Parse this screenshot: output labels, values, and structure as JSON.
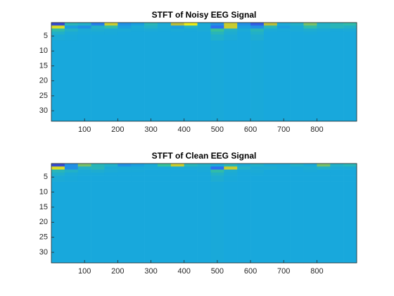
{
  "chart_data": [
    {
      "type": "heatmap",
      "title": "STFT of Noisy EEG Signal",
      "colormap": "parula",
      "clim": [
        0,
        1
      ],
      "xlim": [
        0,
        920
      ],
      "ylim": [
        0.5,
        33.5
      ],
      "xticks": [
        100,
        200,
        300,
        400,
        500,
        600,
        700,
        800
      ],
      "yticks": [
        5,
        10,
        15,
        20,
        25,
        30
      ],
      "x_edges": [
        0,
        40,
        80,
        120,
        160,
        200,
        240,
        280,
        320,
        360,
        400,
        440,
        480,
        520,
        560,
        600,
        640,
        680,
        720,
        760,
        800,
        840,
        880,
        920
      ],
      "y_edges": [
        0.5,
        1.5,
        2.5,
        3.5,
        4.5,
        6.5,
        33.5
      ],
      "values": [
        [
          0.1,
          0.5,
          0.45,
          0.25,
          0.85,
          0.3,
          0.35,
          0.5,
          0.4,
          0.8,
          0.95,
          0.4,
          0.3,
          0.85,
          0.3,
          0.15,
          0.8,
          0.4,
          0.45,
          0.7,
          0.45,
          0.5,
          0.55
        ],
        [
          0.9,
          0.35,
          0.3,
          0.45,
          0.55,
          0.35,
          0.4,
          0.45,
          0.4,
          0.35,
          0.45,
          0.4,
          0.2,
          0.85,
          0.35,
          0.3,
          0.5,
          0.35,
          0.4,
          0.55,
          0.45,
          0.5,
          0.45
        ],
        [
          0.55,
          0.45,
          0.4,
          0.42,
          0.4,
          0.4,
          0.39,
          0.4,
          0.39,
          0.4,
          0.39,
          0.4,
          0.6,
          0.45,
          0.4,
          0.5,
          0.4,
          0.39,
          0.4,
          0.42,
          0.4,
          0.39,
          0.4
        ],
        [
          0.45,
          0.4,
          0.39,
          0.39,
          0.39,
          0.38,
          0.38,
          0.38,
          0.38,
          0.38,
          0.38,
          0.38,
          0.5,
          0.42,
          0.38,
          0.45,
          0.38,
          0.38,
          0.38,
          0.39,
          0.38,
          0.38,
          0.38
        ],
        [
          0.4,
          0.39,
          0.38,
          0.38,
          0.38,
          0.38,
          0.38,
          0.38,
          0.38,
          0.38,
          0.38,
          0.38,
          0.44,
          0.4,
          0.38,
          0.42,
          0.38,
          0.38,
          0.38,
          0.38,
          0.38,
          0.38,
          0.38
        ],
        [
          0.38,
          0.38,
          0.38,
          0.38,
          0.38,
          0.38,
          0.38,
          0.38,
          0.38,
          0.38,
          0.38,
          0.38,
          0.39,
          0.38,
          0.38,
          0.39,
          0.38,
          0.38,
          0.38,
          0.38,
          0.38,
          0.38,
          0.38
        ]
      ]
    },
    {
      "type": "heatmap",
      "title": "STFT of Clean EEG Signal",
      "colormap": "parula",
      "clim": [
        0,
        1
      ],
      "xlim": [
        0,
        920
      ],
      "ylim": [
        0.5,
        33.5
      ],
      "xticks": [
        100,
        200,
        300,
        400,
        500,
        600,
        700,
        800
      ],
      "yticks": [
        5,
        10,
        15,
        20,
        25,
        30
      ],
      "x_edges": [
        0,
        40,
        80,
        120,
        160,
        200,
        240,
        280,
        320,
        360,
        400,
        440,
        480,
        520,
        560,
        600,
        640,
        680,
        720,
        760,
        800,
        840,
        880,
        920
      ],
      "y_edges": [
        0.5,
        1.5,
        2.5,
        3.5,
        4.5,
        6.5,
        33.5
      ],
      "values": [
        [
          0.1,
          0.3,
          0.7,
          0.5,
          0.45,
          0.3,
          0.35,
          0.4,
          0.6,
          0.85,
          0.5,
          0.45,
          0.4,
          0.5,
          0.4,
          0.45,
          0.4,
          0.4,
          0.45,
          0.4,
          0.7,
          0.45,
          0.5
        ],
        [
          0.9,
          0.3,
          0.45,
          0.5,
          0.4,
          0.4,
          0.39,
          0.4,
          0.39,
          0.4,
          0.4,
          0.4,
          0.2,
          0.85,
          0.45,
          0.4,
          0.42,
          0.4,
          0.39,
          0.42,
          0.45,
          0.4,
          0.4
        ],
        [
          0.5,
          0.45,
          0.4,
          0.42,
          0.4,
          0.39,
          0.39,
          0.38,
          0.38,
          0.38,
          0.38,
          0.39,
          0.55,
          0.42,
          0.39,
          0.4,
          0.38,
          0.38,
          0.38,
          0.39,
          0.38,
          0.38,
          0.38
        ],
        [
          0.44,
          0.4,
          0.39,
          0.39,
          0.38,
          0.38,
          0.38,
          0.38,
          0.38,
          0.38,
          0.38,
          0.38,
          0.46,
          0.4,
          0.38,
          0.39,
          0.38,
          0.38,
          0.38,
          0.38,
          0.38,
          0.38,
          0.38
        ],
        [
          0.4,
          0.39,
          0.38,
          0.38,
          0.38,
          0.38,
          0.38,
          0.38,
          0.38,
          0.38,
          0.38,
          0.38,
          0.42,
          0.39,
          0.38,
          0.38,
          0.38,
          0.38,
          0.38,
          0.38,
          0.38,
          0.38,
          0.38
        ],
        [
          0.38,
          0.38,
          0.38,
          0.38,
          0.38,
          0.38,
          0.38,
          0.38,
          0.38,
          0.38,
          0.38,
          0.38,
          0.39,
          0.38,
          0.38,
          0.38,
          0.38,
          0.38,
          0.38,
          0.38,
          0.38,
          0.38,
          0.38
        ]
      ]
    }
  ]
}
